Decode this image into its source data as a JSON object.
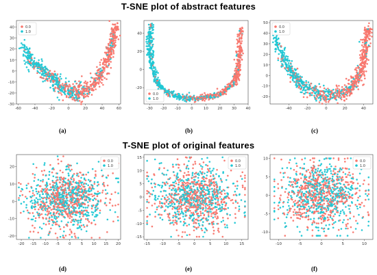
{
  "titles": {
    "abstract": "T-SNE plot of abstract features",
    "original": "T-SNE plot of original features"
  },
  "colors": {
    "series_0": "#f8766d",
    "series_1": "#1fc7d4"
  },
  "chart_data": [
    {
      "id": "a",
      "type": "scatter",
      "label": "(a)",
      "shape": "u-curve",
      "series": [
        {
          "name": "0.0"
        },
        {
          "name": "1.0"
        }
      ],
      "xlim": [
        -62,
        62
      ],
      "ylim": [
        -30,
        46
      ],
      "xticks": [
        -60,
        -40,
        -20,
        0,
        20,
        40,
        60
      ],
      "yticks": [
        -30,
        -20,
        -10,
        0,
        10,
        20,
        30,
        40
      ],
      "legend": "top-left",
      "curve_points": [
        [
          -55,
          20
        ],
        [
          -40,
          7
        ],
        [
          -25,
          -4
        ],
        [
          -10,
          -14
        ],
        [
          5,
          -20
        ],
        [
          20,
          -18
        ],
        [
          35,
          -8
        ],
        [
          45,
          8
        ],
        [
          52,
          25
        ],
        [
          56,
          41
        ]
      ],
      "thickness": 7
    },
    {
      "id": "b",
      "type": "scatter",
      "label": "(b)",
      "shape": "u-curve",
      "series": [
        {
          "name": "0.0"
        },
        {
          "name": "1.0"
        }
      ],
      "xlim": [
        -34,
        40
      ],
      "ylim": [
        -38,
        54
      ],
      "xticks": [
        -30,
        -20,
        -10,
        0,
        10,
        20,
        30,
        40
      ],
      "yticks": [
        -20,
        0,
        20,
        40
      ],
      "legend": "bottom-left",
      "curve_points": [
        [
          -29,
          50
        ],
        [
          -30,
          30
        ],
        [
          -29,
          10
        ],
        [
          -26,
          -10
        ],
        [
          -20,
          -24
        ],
        [
          -10,
          -30
        ],
        [
          0,
          -32
        ],
        [
          10,
          -31
        ],
        [
          20,
          -27
        ],
        [
          30,
          -15
        ],
        [
          33,
          0
        ],
        [
          34,
          20
        ],
        [
          35,
          45
        ]
      ],
      "thickness": 3
    },
    {
      "id": "c",
      "type": "scatter",
      "label": "(c)",
      "shape": "u-curve",
      "series": [
        {
          "name": "0.0"
        },
        {
          "name": "1.0"
        }
      ],
      "xlim": [
        -60,
        50
      ],
      "ylim": [
        -27,
        52
      ],
      "xticks": [
        -40,
        -20,
        0,
        20,
        40
      ],
      "yticks": [
        -20,
        -10,
        0,
        10,
        20,
        30,
        40,
        50
      ],
      "legend": "top-left",
      "curve_points": [
        [
          -55,
          36
        ],
        [
          -45,
          15
        ],
        [
          -35,
          0
        ],
        [
          -25,
          -10
        ],
        [
          -10,
          -17
        ],
        [
          5,
          -19
        ],
        [
          20,
          -16
        ],
        [
          30,
          -8
        ],
        [
          38,
          5
        ],
        [
          42,
          25
        ],
        [
          45,
          45
        ]
      ],
      "thickness": 6
    },
    {
      "id": "d",
      "type": "scatter",
      "label": "(d)",
      "shape": "blob",
      "series": [
        {
          "name": "0.0"
        },
        {
          "name": "1.0"
        }
      ],
      "xlim": [
        -22,
        21
      ],
      "ylim": [
        -22,
        27
      ],
      "xticks": [
        -20,
        -15,
        -10,
        -5,
        0,
        5,
        10,
        15,
        20
      ],
      "yticks": [
        -20,
        -10,
        0,
        10,
        20
      ],
      "legend": "top-right",
      "center": [
        -1,
        1
      ],
      "spread": [
        18,
        20
      ]
    },
    {
      "id": "e",
      "type": "scatter",
      "label": "(e)",
      "shape": "blob",
      "series": [
        {
          "name": "0.0"
        },
        {
          "name": "1.0"
        }
      ],
      "xlim": [
        -16,
        17
      ],
      "ylim": [
        -16,
        16
      ],
      "xticks": [
        -15,
        -10,
        -5,
        0,
        5,
        10,
        15
      ],
      "yticks": [
        -15,
        -10,
        -5,
        0,
        5,
        10,
        15
      ],
      "legend": "top-right",
      "center": [
        0,
        0
      ],
      "spread": [
        15,
        13
      ]
    },
    {
      "id": "f",
      "type": "scatter",
      "label": "(f)",
      "shape": "blob",
      "series": [
        {
          "name": "0.0"
        },
        {
          "name": "1.0"
        }
      ],
      "xlim": [
        -12,
        12
      ],
      "ylim": [
        -12,
        11
      ],
      "xticks": [
        -10,
        -5,
        0,
        5,
        10
      ],
      "yticks": [
        -10,
        -5,
        0,
        5,
        10
      ],
      "legend": "top-right",
      "center": [
        0,
        0
      ],
      "spread": [
        10.5,
        10
      ]
    }
  ]
}
